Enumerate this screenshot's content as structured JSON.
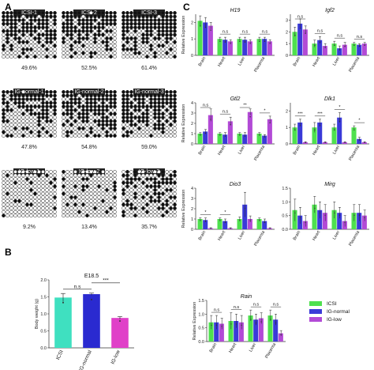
{
  "panel_labels": {
    "a": "A",
    "b": "B",
    "c": "C"
  },
  "legend": {
    "items": [
      {
        "label": "ICSI",
        "color": "#4ee04e"
      },
      {
        "label": "IG-normal",
        "color": "#3a3ad8"
      },
      {
        "label": "IG-low",
        "color": "#b24ad6"
      }
    ]
  },
  "panel_a": {
    "groups": [
      {
        "label": "ICSI-1",
        "percent": "49.6%",
        "fill": 0.496
      },
      {
        "label": "ICSI-2",
        "percent": "52.5%",
        "fill": 0.525
      },
      {
        "label": "ICSI-3",
        "percent": "61.4%",
        "fill": 0.614
      },
      {
        "label": "IG-normal-1",
        "percent": "47.8%",
        "fill": 0.478
      },
      {
        "label": "IG-normal-2",
        "percent": "54.8%",
        "fill": 0.548
      },
      {
        "label": "IG-normal-3",
        "percent": "59.0%",
        "fill": 0.59
      },
      {
        "label": "IG-low-1",
        "percent": "9.2%",
        "fill": 0.092
      },
      {
        "label": "IG-low-2",
        "percent": "13.4%",
        "fill": 0.134
      },
      {
        "label": "IG-low-3",
        "percent": "35.7%",
        "fill": 0.357
      }
    ]
  },
  "chart_data": [
    {
      "id": "b",
      "type": "bar",
      "title": "E18.5",
      "ylabel": "Body weight (g)",
      "ylim": [
        0,
        2.0
      ],
      "yticks": [
        "0.0",
        "0.5",
        "1.0",
        "1.5",
        "2.0"
      ],
      "categories": [
        "ICSI",
        "IG-normal",
        "IG-low"
      ],
      "values": [
        1.48,
        1.58,
        0.88
      ],
      "errors": [
        0.12,
        0.03,
        0.04
      ],
      "colors": [
        "#3fe0c0",
        "#2a2ad0",
        "#e040c8"
      ],
      "sig": [
        {
          "from": 0,
          "to": 1,
          "label": "n.s"
        },
        {
          "from": 1,
          "to": 2,
          "label": "***"
        }
      ]
    },
    {
      "id": "H19",
      "type": "bar",
      "title": "H19",
      "ylabel": "Relative Expression",
      "ylim": [
        0,
        2.5
      ],
      "yticks": [
        "0",
        "1",
        "2"
      ],
      "categories": [
        "Brain",
        "Heart",
        "Liver",
        "Placenta"
      ],
      "series": [
        {
          "name": "ICSI",
          "values": [
            2.1,
            1.0,
            1.0,
            1.0
          ],
          "errors": [
            0.3,
            0.1,
            0.1,
            0.1
          ]
        },
        {
          "name": "IG-normal",
          "values": [
            2.0,
            0.95,
            0.95,
            1.0
          ],
          "errors": [
            0.3,
            0.15,
            0.15,
            0.1
          ]
        },
        {
          "name": "IG-low",
          "values": [
            1.8,
            0.85,
            0.85,
            0.85
          ],
          "errors": [
            0.2,
            0.1,
            0.1,
            0.1
          ]
        }
      ],
      "sig": [
        {
          "cat": 1,
          "label": "n.s"
        },
        {
          "cat": 2,
          "label": "n.s"
        },
        {
          "cat": 3,
          "label": "n.s"
        }
      ]
    },
    {
      "id": "Igf2",
      "type": "bar",
      "title": "Igf2",
      "ylabel": "",
      "ylim": [
        0,
        3.5
      ],
      "yticks": [
        "0",
        "1",
        "2",
        "3"
      ],
      "categories": [
        "Brain",
        "Heart",
        "Liver",
        "Placenta"
      ],
      "series": [
        {
          "name": "ICSI",
          "values": [
            2.0,
            1.0,
            1.0,
            1.0
          ],
          "errors": [
            0.4,
            0.3,
            0.2,
            0.1
          ]
        },
        {
          "name": "IG-normal",
          "values": [
            2.7,
            1.3,
            0.6,
            0.9
          ],
          "errors": [
            0.4,
            0.3,
            0.2,
            0.1
          ]
        },
        {
          "name": "IG-low",
          "values": [
            2.2,
            0.8,
            0.9,
            1.0
          ],
          "errors": [
            0.3,
            0.2,
            0.2,
            0.1
          ]
        }
      ],
      "sig": [
        {
          "cat": 0,
          "label": "n.s"
        },
        {
          "cat": 1,
          "label": "n.s"
        },
        {
          "cat": 2,
          "label": "n.s"
        },
        {
          "cat": 3,
          "label": "n.s"
        }
      ]
    },
    {
      "id": "Gtl2",
      "type": "bar",
      "title": "Gtl2",
      "ylabel": "Relative Expression",
      "ylim": [
        0,
        4
      ],
      "yticks": [
        "0",
        "1",
        "2",
        "3",
        "4"
      ],
      "categories": [
        "Brain",
        "Heart",
        "Liver",
        "Placenta"
      ],
      "series": [
        {
          "name": "ICSI",
          "values": [
            1.0,
            1.0,
            1.0,
            1.0
          ],
          "errors": [
            0.1,
            0.1,
            0.1,
            0.1
          ]
        },
        {
          "name": "IG-normal",
          "values": [
            1.2,
            0.9,
            0.9,
            0.8
          ],
          "errors": [
            0.2,
            0.2,
            0.2,
            0.1
          ]
        },
        {
          "name": "IG-low",
          "values": [
            2.8,
            2.2,
            3.1,
            2.4
          ],
          "errors": [
            0.6,
            0.4,
            0.3,
            0.3
          ]
        }
      ],
      "sig": [
        {
          "cat": 0,
          "label": "n.s"
        },
        {
          "cat": 1,
          "label": "n.s"
        },
        {
          "cat": 2,
          "label": "**"
        },
        {
          "cat": 3,
          "label": "*"
        }
      ]
    },
    {
      "id": "Dlk1",
      "type": "bar",
      "title": "Dlk1",
      "ylabel": "",
      "ylim": [
        0,
        2.5
      ],
      "yticks": [
        "0",
        "1",
        "2"
      ],
      "categories": [
        "Brain",
        "Heart",
        "Liver",
        "Placenta"
      ],
      "series": [
        {
          "name": "ICSI",
          "values": [
            1.0,
            1.0,
            1.0,
            1.0
          ],
          "errors": [
            0.2,
            0.3,
            0.2,
            0.1
          ]
        },
        {
          "name": "IG-normal",
          "values": [
            1.3,
            1.3,
            1.6,
            0.3
          ],
          "errors": [
            0.2,
            0.2,
            0.3,
            0.1
          ]
        },
        {
          "name": "IG-low",
          "values": [
            0.1,
            0.1,
            0.1,
            0.1
          ],
          "errors": [
            0.03,
            0.03,
            0.03,
            0.03
          ]
        }
      ],
      "sig": [
        {
          "cat": 0,
          "label": "***"
        },
        {
          "cat": 1,
          "label": "***"
        },
        {
          "cat": 2,
          "label": "*"
        },
        {
          "cat": 3,
          "label": "*"
        }
      ]
    },
    {
      "id": "Dio3",
      "type": "bar",
      "title": "Dio3",
      "ylabel": "Relative Expression",
      "ylim": [
        0,
        4
      ],
      "yticks": [
        "0",
        "1",
        "2",
        "3",
        "4"
      ],
      "categories": [
        "Brain",
        "Heart",
        "Liver",
        "Placenta"
      ],
      "series": [
        {
          "name": "ICSI",
          "values": [
            1.0,
            1.0,
            1.0,
            1.0
          ],
          "errors": [
            0.1,
            0.1,
            0.2,
            0.1
          ]
        },
        {
          "name": "IG-normal",
          "values": [
            0.9,
            0.8,
            2.4,
            0.8
          ],
          "errors": [
            0.2,
            0.2,
            1.2,
            0.2
          ]
        },
        {
          "name": "IG-low",
          "values": [
            0.1,
            0.1,
            1.0,
            0.1
          ],
          "errors": [
            0.05,
            0.05,
            0.3,
            0.05
          ]
        }
      ],
      "sig": [
        {
          "cat": 0,
          "label": "*"
        },
        {
          "cat": 1,
          "label": "*"
        }
      ]
    },
    {
      "id": "Mirg",
      "type": "bar",
      "title": "Mirg",
      "ylabel": "",
      "ylim": [
        0,
        1.5
      ],
      "yticks": [
        "0.0",
        "0.5",
        "1.0",
        "1.5"
      ],
      "categories": [
        "Brain",
        "Heart",
        "Liver",
        "Placenta"
      ],
      "series": [
        {
          "name": "ICSI",
          "values": [
            0.7,
            0.9,
            0.7,
            0.6
          ],
          "errors": [
            0.4,
            0.3,
            0.3,
            0.3
          ]
        },
        {
          "name": "IG-normal",
          "values": [
            0.5,
            0.7,
            0.6,
            0.6
          ],
          "errors": [
            0.3,
            0.3,
            0.2,
            0.3
          ]
        },
        {
          "name": "IG-low",
          "values": [
            0.3,
            0.6,
            0.3,
            0.5
          ],
          "errors": [
            0.2,
            0.3,
            0.2,
            0.2
          ]
        }
      ],
      "sig": []
    },
    {
      "id": "Rian",
      "type": "bar",
      "title": "Rain",
      "ylabel": "Relative Expression",
      "ylim": [
        0,
        1.5
      ],
      "yticks": [
        "0.0",
        "0.5",
        "1.0",
        "1.5"
      ],
      "categories": [
        "Brain",
        "Heart",
        "Liver",
        "Placenta"
      ],
      "series": [
        {
          "name": "ICSI",
          "values": [
            0.7,
            0.75,
            0.95,
            0.95
          ],
          "errors": [
            0.25,
            0.3,
            0.2,
            0.2
          ]
        },
        {
          "name": "IG-normal",
          "values": [
            0.7,
            0.75,
            0.8,
            0.8
          ],
          "errors": [
            0.25,
            0.25,
            0.2,
            0.2
          ]
        },
        {
          "name": "IG-low",
          "values": [
            0.65,
            0.7,
            0.85,
            0.3
          ],
          "errors": [
            0.2,
            0.25,
            0.2,
            0.1
          ]
        }
      ],
      "sig": [
        {
          "cat": 0,
          "label": "n.s"
        },
        {
          "cat": 1,
          "label": "n.s"
        },
        {
          "cat": 2,
          "label": "n.s"
        },
        {
          "cat": 3,
          "label": "n.s"
        }
      ]
    }
  ]
}
